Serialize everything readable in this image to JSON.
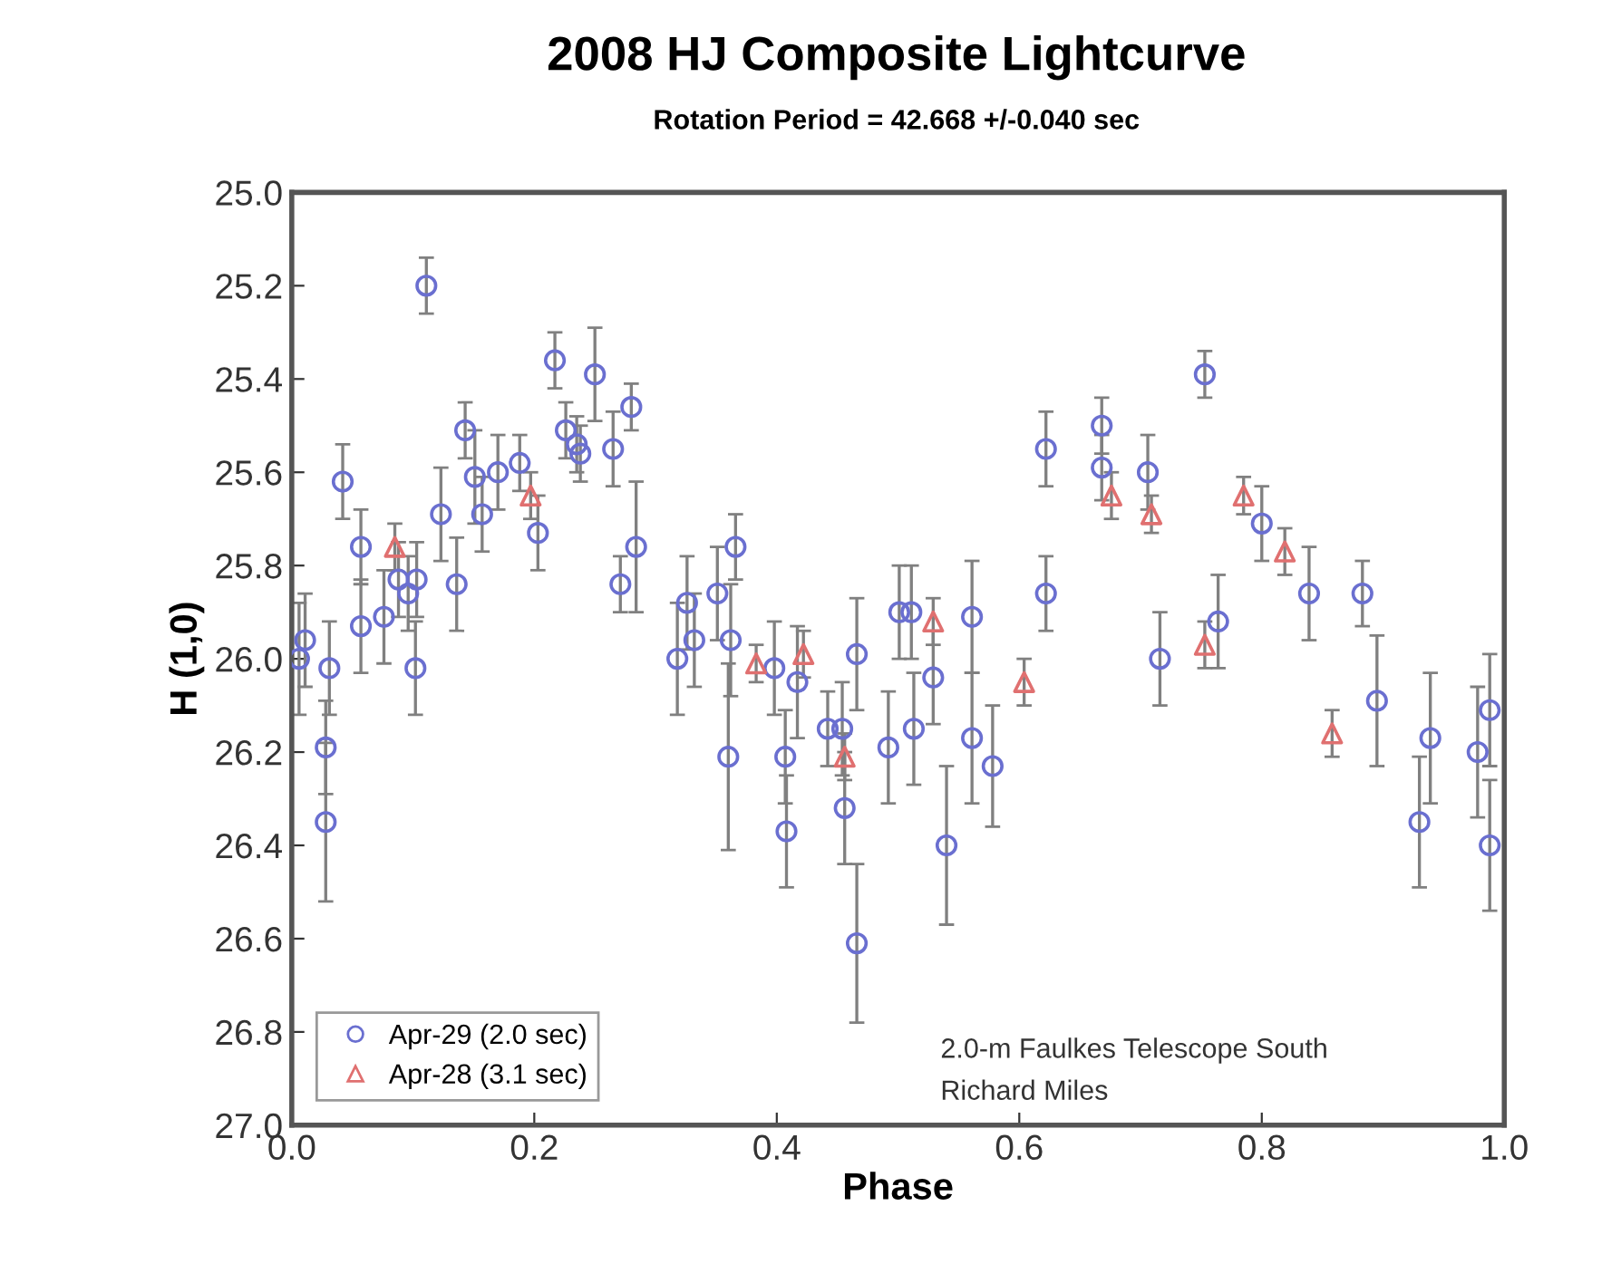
{
  "chart_data": {
    "type": "scatter",
    "title": "2008 HJ Composite Lightcurve",
    "subtitle": "Rotation Period = 42.668 +/-0.040 sec",
    "xlabel": "Phase",
    "ylabel": "H (1,0)",
    "xlim": [
      0.0,
      1.0
    ],
    "xticks": [
      {
        "value": 0,
        "label": "0.0"
      },
      0.2,
      0.4,
      0.6,
      0.8,
      {
        "value": 1,
        "label": "1.0"
      }
    ],
    "ylim": [
      27.0,
      25.0
    ],
    "yticks": [
      {
        "value": 25,
        "label": "25.0"
      },
      25.2,
      25.4,
      25.6,
      25.8,
      {
        "value": 26,
        "label": "26.0"
      },
      26.2,
      26.4,
      26.6,
      26.8,
      {
        "value": 27,
        "label": "27.0"
      }
    ],
    "grid": false,
    "legend": "bottom left",
    "annotations": [
      "2.0-m Faulkes Telescope South",
      "Richard Miles"
    ],
    "series": [
      {
        "name": "Apr-29 (2.0 sec)",
        "color": "#6a6fd0",
        "marker": "circle",
        "x": [
          0.006,
          0.011,
          0.031,
          0.028,
          0.028,
          0.042,
          0.057,
          0.057,
          0.076,
          0.088,
          0.096,
          0.103,
          0.102,
          0.111,
          0.123,
          0.136,
          0.143,
          0.151,
          0.157,
          0.17,
          0.188,
          0.203,
          0.217,
          0.226,
          0.235,
          0.238,
          0.25,
          0.265,
          0.271,
          0.284,
          0.28,
          0.318,
          0.326,
          0.332,
          0.351,
          0.366,
          0.362,
          0.36,
          0.398,
          0.407,
          0.408,
          0.417,
          0.442,
          0.454,
          0.456,
          0.466,
          0.466,
          0.492,
          0.501,
          0.511,
          0.513,
          0.529,
          0.54,
          0.561,
          0.561,
          0.578,
          0.622,
          0.622,
          0.668,
          0.668,
          0.706,
          0.716,
          0.753,
          0.764,
          0.8,
          0.839,
          0.883,
          0.895,
          0.93,
          0.939,
          0.978,
          0.988,
          0.988
        ],
        "values": [
          26.0,
          25.96,
          26.02,
          26.19,
          26.35,
          25.62,
          25.76,
          25.93,
          25.91,
          25.83,
          25.86,
          25.83,
          26.02,
          25.2,
          25.69,
          25.84,
          25.51,
          25.61,
          25.69,
          25.6,
          25.58,
          25.73,
          25.36,
          25.51,
          25.54,
          25.56,
          25.39,
          25.55,
          25.84,
          25.76,
          25.46,
          26.0,
          25.88,
          25.96,
          25.86,
          25.76,
          25.96,
          26.21,
          26.02,
          26.21,
          26.37,
          26.05,
          26.15,
          26.15,
          26.32,
          25.99,
          26.61,
          26.19,
          25.9,
          25.9,
          26.15,
          26.04,
          26.4,
          25.91,
          26.17,
          26.23,
          25.55,
          25.86,
          25.5,
          25.59,
          25.6,
          26.0,
          25.39,
          25.92,
          25.71,
          25.86,
          25.86,
          26.09,
          26.35,
          26.17,
          26.2,
          26.11,
          26.4
        ],
        "errors": [
          0.12,
          0.1,
          0.1,
          0.1,
          0.17,
          0.08,
          0.08,
          0.1,
          0.1,
          0.08,
          0.08,
          0.08,
          0.1,
          0.06,
          0.1,
          0.1,
          0.06,
          0.1,
          0.08,
          0.08,
          0.06,
          0.08,
          0.06,
          0.06,
          0.06,
          0.06,
          0.1,
          0.08,
          0.06,
          0.14,
          0.05,
          0.12,
          0.1,
          0.1,
          0.1,
          0.07,
          0.12,
          0.2,
          0.1,
          0.1,
          0.12,
          0.12,
          0.08,
          0.1,
          0.12,
          0.12,
          0.17,
          0.12,
          0.1,
          0.1,
          0.12,
          0.1,
          0.17,
          0.12,
          0.14,
          0.13,
          0.08,
          0.08,
          0.06,
          0.07,
          0.08,
          0.1,
          0.05,
          0.1,
          0.08,
          0.1,
          0.07,
          0.14,
          0.14,
          0.14,
          0.14,
          0.12,
          0.14
        ]
      },
      {
        "name": "Apr-28 (3.1 sec)",
        "color": "#e07070",
        "marker": "triangle",
        "x": [
          0.085,
          0.197,
          0.383,
          0.422,
          0.456,
          0.529,
          0.604,
          0.676,
          0.709,
          0.753,
          0.785,
          0.819,
          0.858
        ],
        "values": [
          25.76,
          25.65,
          26.01,
          25.99,
          26.21,
          25.92,
          26.05,
          25.65,
          25.69,
          25.97,
          25.65,
          25.77,
          26.16
        ],
        "errors": [
          0.05,
          0.05,
          0.04,
          0.05,
          0.05,
          0.05,
          0.05,
          0.05,
          0.04,
          0.05,
          0.04,
          0.05,
          0.05
        ]
      }
    ]
  }
}
